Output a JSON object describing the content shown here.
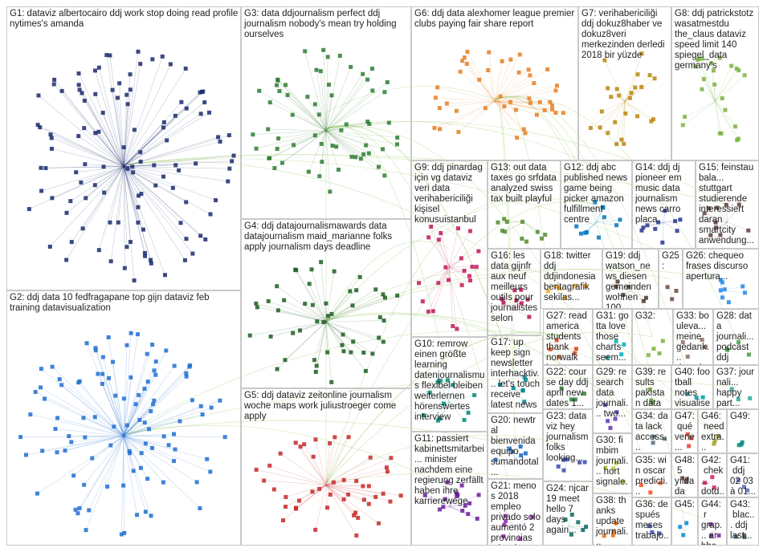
{
  "groups": [
    {
      "id": "G1:",
      "words": "dataviz albertocairo ddj work stop doing read profile nytimes's amanda"
    },
    {
      "id": "G2:",
      "words": "ddj data 10 fedfragapane top gijn dataviz feb training datavisualization"
    },
    {
      "id": "G3:",
      "words": "data ddjournalism perfect ddj journalism nobody's mean try holding ourselves"
    },
    {
      "id": "G4:",
      "words": "ddj datajournalismawards data datajournalism maid_marianne folks apply journalism days deadline"
    },
    {
      "id": "G5:",
      "words": "ddj dataviz zeitonline journalism woche maps work juliustroeger come apply"
    },
    {
      "id": "G6:",
      "words": "ddj data alexhomer league premier clubs paying fair share report"
    },
    {
      "id": "G7:",
      "words": "verihabericiliği ddj dokuz8haber ve dokuz8veri merkezinden derledi 2018 bir yüzde"
    },
    {
      "id": "G8:",
      "words": "ddj patrickstotz wasatmestdu the_claus dataviz speed limit 140 spiegel_data germany's"
    },
    {
      "id": "G9:",
      "words": "ddj pinardag için vg dataviz veri data verihabericiliği kişisel konusuistanbul"
    },
    {
      "id": "G10:",
      "words": "remrow einen größte learning datenjournalismus flexibel bleiben weiterlernen hörenswertes interview"
    },
    {
      "id": "G11:",
      "words": "passiert kabinettsmitarbei... minister nachdem eine regierung zerfällt haben ihre karrierewege"
    },
    {
      "id": "G12:",
      "words": "ddj abc published news game being picker amazon fulfillment centre"
    },
    {
      "id": "G13:",
      "words": "out data taxes go srfdata analyzed swiss tax built playful"
    },
    {
      "id": "G14:",
      "words": "ddj dj pioneer em music data journalism news carro placa"
    },
    {
      "id": "G15:",
      "words": "feinstaubala... stuttgart studierende interessiert daran smartcity anwendung..."
    },
    {
      "id": "G16:",
      "words": "les data gijnfr aux neuf meilleurs outils pour journalistes selon"
    },
    {
      "id": "G17:",
      "words": "up keep sign newsletter interhacktiv... let's touch receive latest news"
    },
    {
      "id": "G18:",
      "words": "twitter ddj ddjindonesia beritagrafik sekilas..."
    },
    {
      "id": "G19:",
      "words": "ddj watson_news diesen gemeinden wohnen 100..."
    },
    {
      "id": "G20:",
      "words": "newtral bienvenida equipo sumandotal... factcheking periodismo..."
    },
    {
      "id": "G21:",
      "words": "menos 2018 empleo privado solo aumentó 2 provincias minería..."
    },
    {
      "id": "G22:",
      "words": "course day ddj april new dates 1... intro..."
    },
    {
      "id": "G23:",
      "words": "dataviz hey journalism folks looking..."
    },
    {
      "id": "G24:",
      "words": "njcar19 meet hello 7 days again..."
    },
    {
      "id": "G25:"
    },
    {
      "id": "G26:",
      "words": "chequeo frases discurso apertura..."
    },
    {
      "id": "G27:",
      "words": "read america students thank norwalk hs..."
    },
    {
      "id": "G28:",
      "words": "data journali... podcast ddj"
    },
    {
      "id": "G29:",
      "words": "research data journali... two..."
    },
    {
      "id": "G30:",
      "words": "fimbim journali... hort signale..."
    },
    {
      "id": "G31:",
      "words": "gotta love those charts seem..."
    },
    {
      "id": "G32:"
    },
    {
      "id": "G33:",
      "words": "bouleva... meine gedank... datenjo..."
    },
    {
      "id": "G34:",
      "words": "data lack access..."
    },
    {
      "id": "G35:",
      "words": "win oscar predicti... sole24o..."
    },
    {
      "id": "G36:",
      "words": "después meses trabajo..."
    },
    {
      "id": "G37:",
      "words": "journali... happy part..."
    },
    {
      "id": "G38:",
      "words": "thanks update journali..."
    },
    {
      "id": "G39:",
      "words": "results pakistan data visualise..."
    },
    {
      "id": "G40:",
      "words": "football notes visualise..."
    },
    {
      "id": "G41:",
      "words": "ddj 02 03 à 01..."
    },
    {
      "id": "G42:",
      "words": "chek... dotd..."
    },
    {
      "id": "G43:",
      "words": "blac... ddj last..."
    },
    {
      "id": "G44:",
      "words": "r grap... ar bbc ddj..."
    },
    {
      "id": "G45:"
    },
    {
      "id": "G46:",
      "words": "need extra..."
    },
    {
      "id": "G47:",
      "words": "qué vene..."
    },
    {
      "id": "G48:",
      "words": "5 yıldada ven gaze..."
    },
    {
      "id": "G49:"
    }
  ]
}
